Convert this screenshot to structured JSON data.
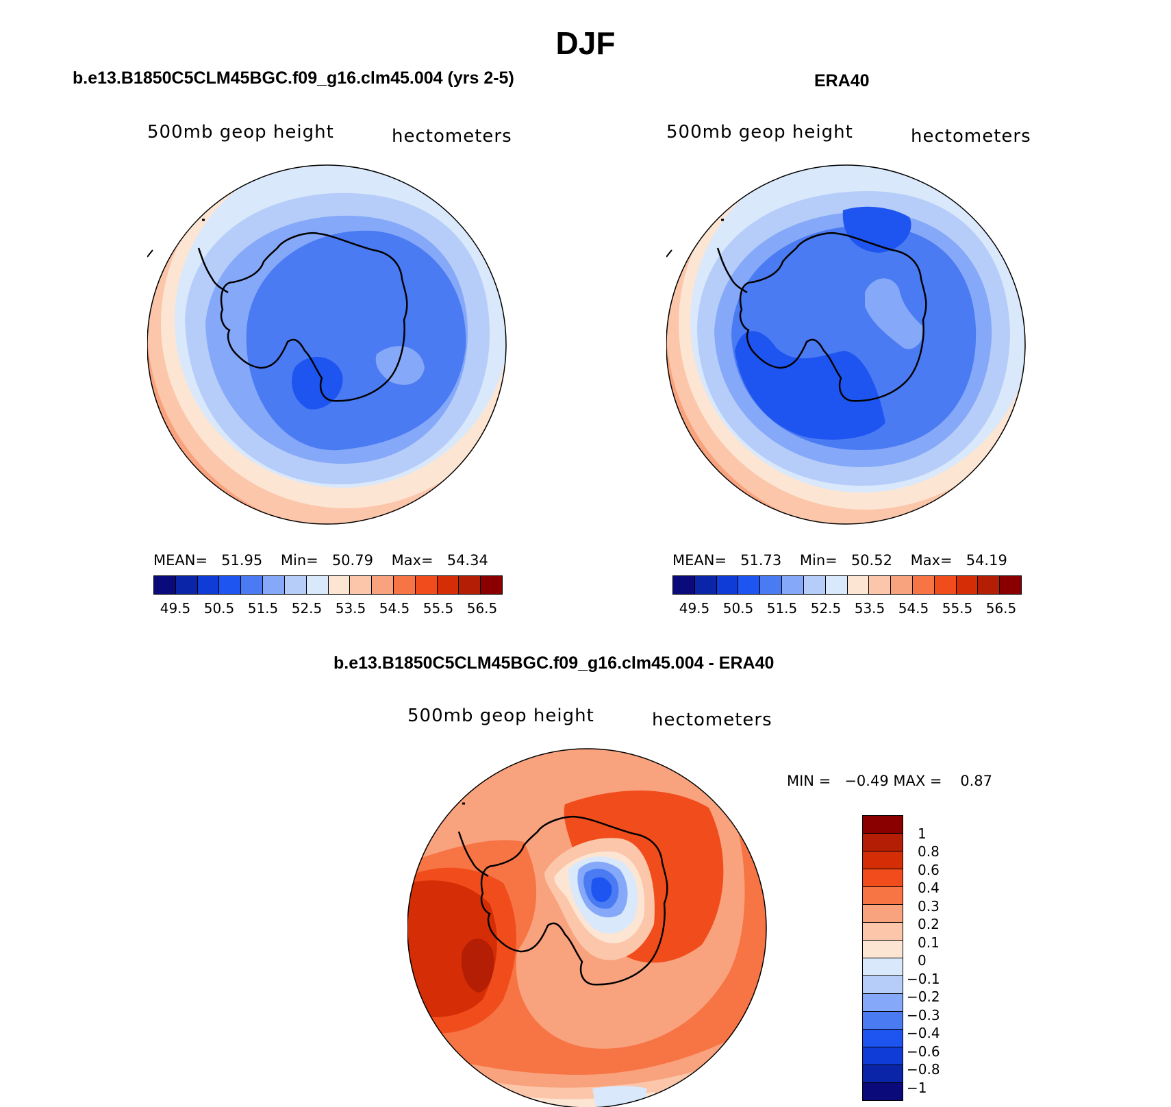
{
  "figure_title": "DJF",
  "panels": {
    "model": {
      "title": "b.e13.B1850C5CLM45BGC.f09_g16.clm45.004 (yrs 2-5)",
      "variable_label": "500mb  geop  height",
      "units_label": "hectometers",
      "stats": {
        "mean_label": "MEAN=",
        "mean": "51.95",
        "min_label": "Min=",
        "min": "50.79",
        "max_label": "Max=",
        "max": "54.34"
      }
    },
    "obs": {
      "title": "ERA40",
      "variable_label": "500mb  geop  height",
      "units_label": "hectometers",
      "stats": {
        "mean_label": "MEAN=",
        "mean": "51.73",
        "min_label": "Min=",
        "min": "50.52",
        "max_label": "Max=",
        "max": "54.19"
      }
    },
    "diff": {
      "title": "b.e13.B1850C5CLM45BGC.f09_g16.clm45.004 - ERA40",
      "variable_label": "500mb  geop  height",
      "units_label": "hectometers",
      "stats": {
        "min_label": "MIN =",
        "min": "−0.49",
        "max_label": "MAX =",
        "max": "0.87"
      }
    }
  },
  "colorbar_abs": {
    "colors": [
      "#0a0a7a",
      "#0b25a8",
      "#0f3bd6",
      "#1e55f0",
      "#4a7bf3",
      "#85a9f8",
      "#b6cdfa",
      "#d9e8fa",
      "#fde5d4",
      "#fbc6a9",
      "#f8a27e",
      "#f77444",
      "#f14d1c",
      "#d52e07",
      "#b41e04",
      "#8a0000"
    ],
    "ticks": [
      "49.5",
      "50.5",
      "51.5",
      "52.5",
      "53.5",
      "54.5",
      "55.5",
      "56.5"
    ]
  },
  "colorbar_diff": {
    "colors": [
      "#8a0000",
      "#b41e04",
      "#d52e07",
      "#f14d1c",
      "#f77444",
      "#f8a27e",
      "#fbc6a9",
      "#fde5d4",
      "#d9e8fa",
      "#b6cdfa",
      "#85a9f8",
      "#4a7bf3",
      "#1e55f0",
      "#0f3bd6",
      "#0b25a8",
      "#0a0a7a"
    ],
    "ticks": [
      "1",
      "0.8",
      "0.6",
      "0.4",
      "0.3",
      "0.2",
      "0.1",
      "0",
      "−0.1",
      "−0.2",
      "−0.3",
      "−0.4",
      "−0.6",
      "−0.8",
      "−1"
    ]
  },
  "chart_data": [
    {
      "type": "heatmap",
      "projection": "south polar stereographic",
      "title": "b.e13.B1850C5CLM45BGC.f09_g16.clm45.004 (yrs 2-5)",
      "variable": "500mb geop height",
      "units": "hectometers",
      "mean": 51.95,
      "min": 50.79,
      "max": 54.34,
      "levels": [
        49.5,
        50.0,
        50.5,
        51.0,
        51.5,
        52.0,
        52.5,
        53.0,
        53.5,
        54.0,
        54.5,
        55.0,
        55.5,
        56.0,
        56.5
      ]
    },
    {
      "type": "heatmap",
      "projection": "south polar stereographic",
      "title": "ERA40",
      "variable": "500mb geop height",
      "units": "hectometers",
      "mean": 51.73,
      "min": 50.52,
      "max": 54.19,
      "levels": [
        49.5,
        50.0,
        50.5,
        51.0,
        51.5,
        52.0,
        52.5,
        53.0,
        53.5,
        54.0,
        54.5,
        55.0,
        55.5,
        56.0,
        56.5
      ]
    },
    {
      "type": "heatmap",
      "projection": "south polar stereographic",
      "title": "b.e13.B1850C5CLM45BGC.f09_g16.clm45.004 - ERA40",
      "variable": "500mb geop height",
      "units": "hectometers",
      "min": -0.49,
      "max": 0.87,
      "levels": [
        -1,
        -0.8,
        -0.6,
        -0.4,
        -0.3,
        -0.2,
        -0.1,
        0,
        0.1,
        0.2,
        0.3,
        0.4,
        0.6,
        0.8,
        1
      ]
    }
  ]
}
